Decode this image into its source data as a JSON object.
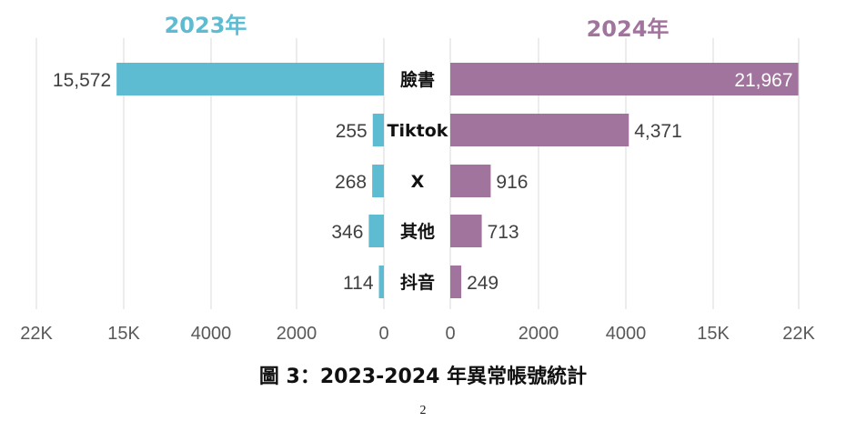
{
  "chart_data": {
    "type": "bar",
    "orientation": "horizontal-butterfly",
    "categories": [
      "臉書",
      "Tiktok",
      "X",
      "其他",
      "抖音"
    ],
    "series": [
      {
        "name": "2023年",
        "values": [
          15572,
          255,
          268,
          346,
          114
        ],
        "labels": [
          "15,572",
          "255",
          "268",
          "346",
          "114"
        ]
      },
      {
        "name": "2024年",
        "values": [
          21967,
          4371,
          916,
          713,
          249
        ],
        "labels": [
          "21,967",
          "4,371",
          "916",
          "713",
          "249"
        ]
      }
    ],
    "axis_ticks": [
      "0",
      "2000",
      "4000",
      "15K",
      "22K"
    ],
    "grid": true,
    "legend_position": "top"
  },
  "colors": {
    "left_bar": "#5DBCD2",
    "right_bar": "#A0749C",
    "left_title": "#5DBCD2",
    "right_title": "#A0749C",
    "grid": "#D9D9D9",
    "tick_text": "#595959",
    "label_text": "#404040"
  },
  "caption": "圖 3：2023-2024 年異常帳號統計",
  "page_number": "2"
}
